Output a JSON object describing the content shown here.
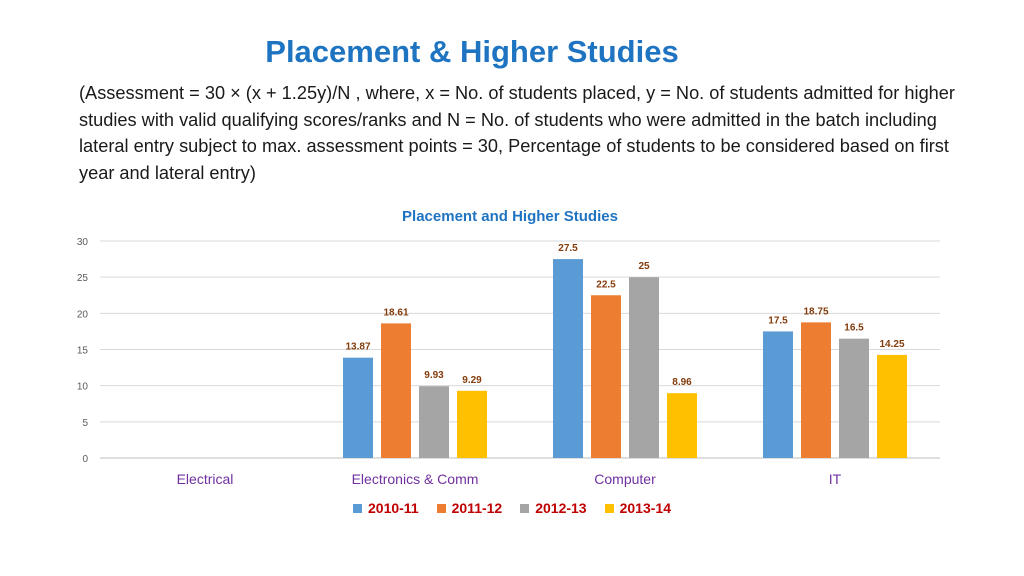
{
  "slide": {
    "title": "Placement & Higher Studies",
    "note": "(Assessment = 30 × (x + 1.25y)/N  , where, x = No. of students placed, y = No. of students admitted for higher studies with valid qualifying scores/ranks and N = No. of students who were admitted in the batch including lateral entry subject to max. assessment points = 30, Percentage of students to be considered based on first year and lateral entry)"
  },
  "chart_data": {
    "type": "bar",
    "title": "Placement and Higher Studies",
    "categories": [
      "Electrical",
      "Electronics & Comm",
      "Computer",
      "IT"
    ],
    "series": [
      {
        "name": "2010-11",
        "color": "#5b9bd5",
        "values": [
          null,
          13.87,
          27.5,
          17.5
        ]
      },
      {
        "name": "2011-12",
        "color": "#ed7d31",
        "values": [
          null,
          18.61,
          22.5,
          18.75
        ]
      },
      {
        "name": "2012-13",
        "color": "#a5a5a5",
        "values": [
          null,
          9.93,
          25,
          16.5
        ]
      },
      {
        "name": "2013-14",
        "color": "#ffc000",
        "values": [
          null,
          9.29,
          8.96,
          14.25
        ]
      }
    ],
    "yticks": [
      "0",
      "5",
      "10",
      "15",
      "20",
      "25",
      "30"
    ],
    "ylim": [
      0,
      30
    ],
    "grid": true,
    "legend_position": "bottom",
    "colors": {
      "title": "#1f74c2",
      "category_labels": "#7030a0",
      "data_labels": "#843c0c",
      "legend_text": "#c00000"
    }
  }
}
